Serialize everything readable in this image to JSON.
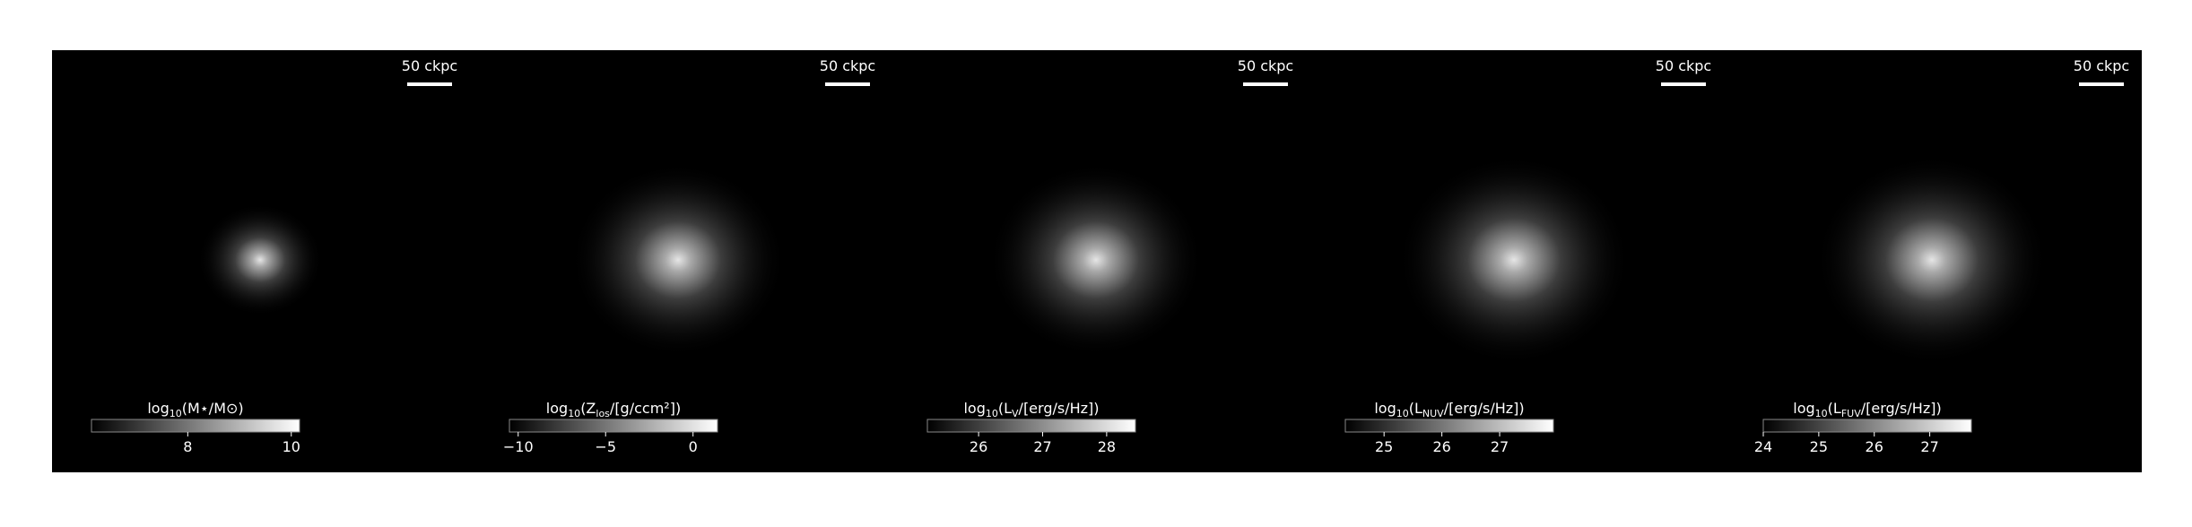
{
  "chart_data": [
    {
      "type": "image",
      "label": [
        "log",
        "10",
        "(M⋆/M⊙)"
      ],
      "scale_bar": "50 ckpc",
      "clim": [
        6.14,
        10.16
      ],
      "cticks": [
        8,
        10
      ]
    },
    {
      "type": "image",
      "label": [
        "log",
        "10",
        "(Z",
        "los",
        "/[g/ccm²])"
      ],
      "scale_bar": "50 ckpc",
      "clim": [
        -10.5,
        1.4
      ],
      "cticks": [
        {
          "value": -10,
          "label": "−10"
        },
        {
          "value": -5,
          "label": "−5"
        },
        0
      ]
    },
    {
      "type": "image",
      "label": [
        "log",
        "10",
        "(L",
        "V",
        "/[erg/s/Hz])"
      ],
      "scale_bar": "50 ckpc",
      "clim": [
        25.2,
        28.45
      ],
      "cticks": [
        26,
        27,
        28
      ]
    },
    {
      "type": "image",
      "label": [
        "log",
        "10",
        "(L",
        "NUV",
        "/[erg/s/Hz])"
      ],
      "scale_bar": "50 ckpc",
      "clim": [
        24.33,
        27.93
      ],
      "cticks": [
        25,
        26,
        27
      ]
    },
    {
      "type": "image",
      "label": [
        "log",
        "10",
        "(L",
        "FUV",
        "/[erg/s/Hz])"
      ],
      "scale_bar": "50 ckpc",
      "clim": [
        24,
        27.75
      ],
      "cticks": [
        24,
        25,
        26,
        27
      ]
    }
  ]
}
